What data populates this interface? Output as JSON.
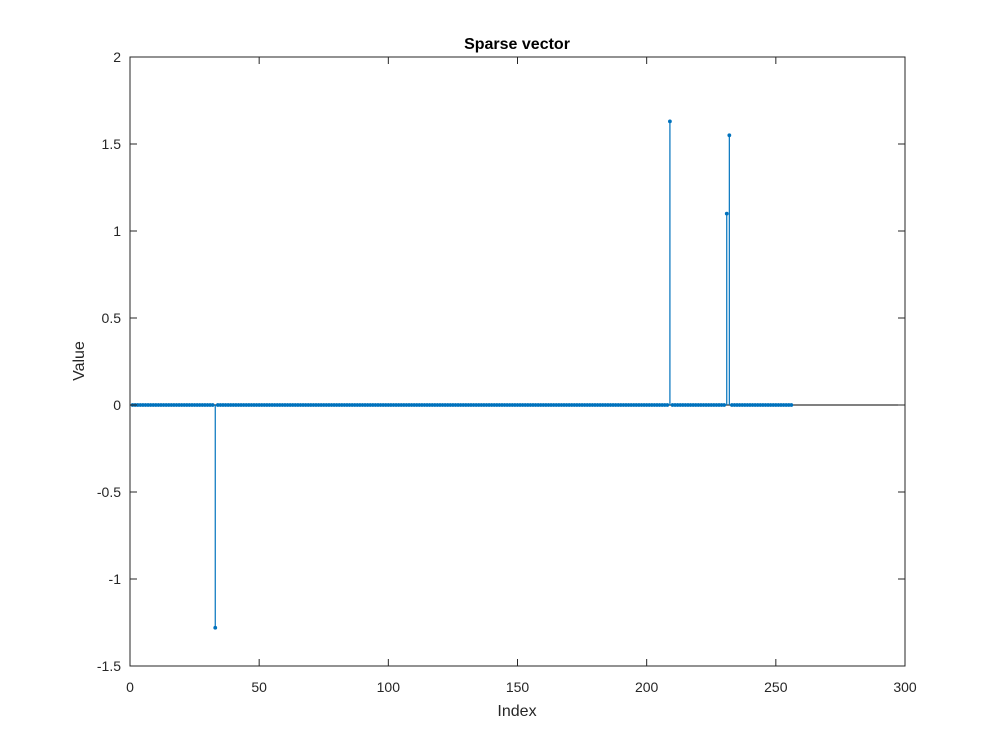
{
  "chart_data": {
    "type": "stem",
    "title": "Sparse vector",
    "xlabel": "Index",
    "ylabel": "Value",
    "xlim": [
      0,
      300
    ],
    "ylim": [
      -1.5,
      2
    ],
    "xticks": [
      0,
      50,
      100,
      150,
      200,
      250,
      300
    ],
    "yticks": [
      -1.5,
      -1,
      -0.5,
      0,
      0.5,
      1,
      1.5,
      2
    ],
    "xtick_labels": [
      "0",
      "50",
      "100",
      "150",
      "200",
      "250",
      "300"
    ],
    "ytick_labels": [
      "-1.5",
      "-1",
      "-0.5",
      "0",
      "0.5",
      "1",
      "1.5",
      "2"
    ],
    "grid": false,
    "n_points": 256,
    "baseline": 0,
    "nonzero": [
      {
        "x": 33,
        "y": -1.28
      },
      {
        "x": 209,
        "y": 1.63
      },
      {
        "x": 231,
        "y": 1.1
      },
      {
        "x": 232,
        "y": 1.55
      }
    ],
    "colors": {
      "series": "#0072BD",
      "axes": "#262626",
      "baseline": "#000000",
      "background": "#ffffff"
    }
  }
}
